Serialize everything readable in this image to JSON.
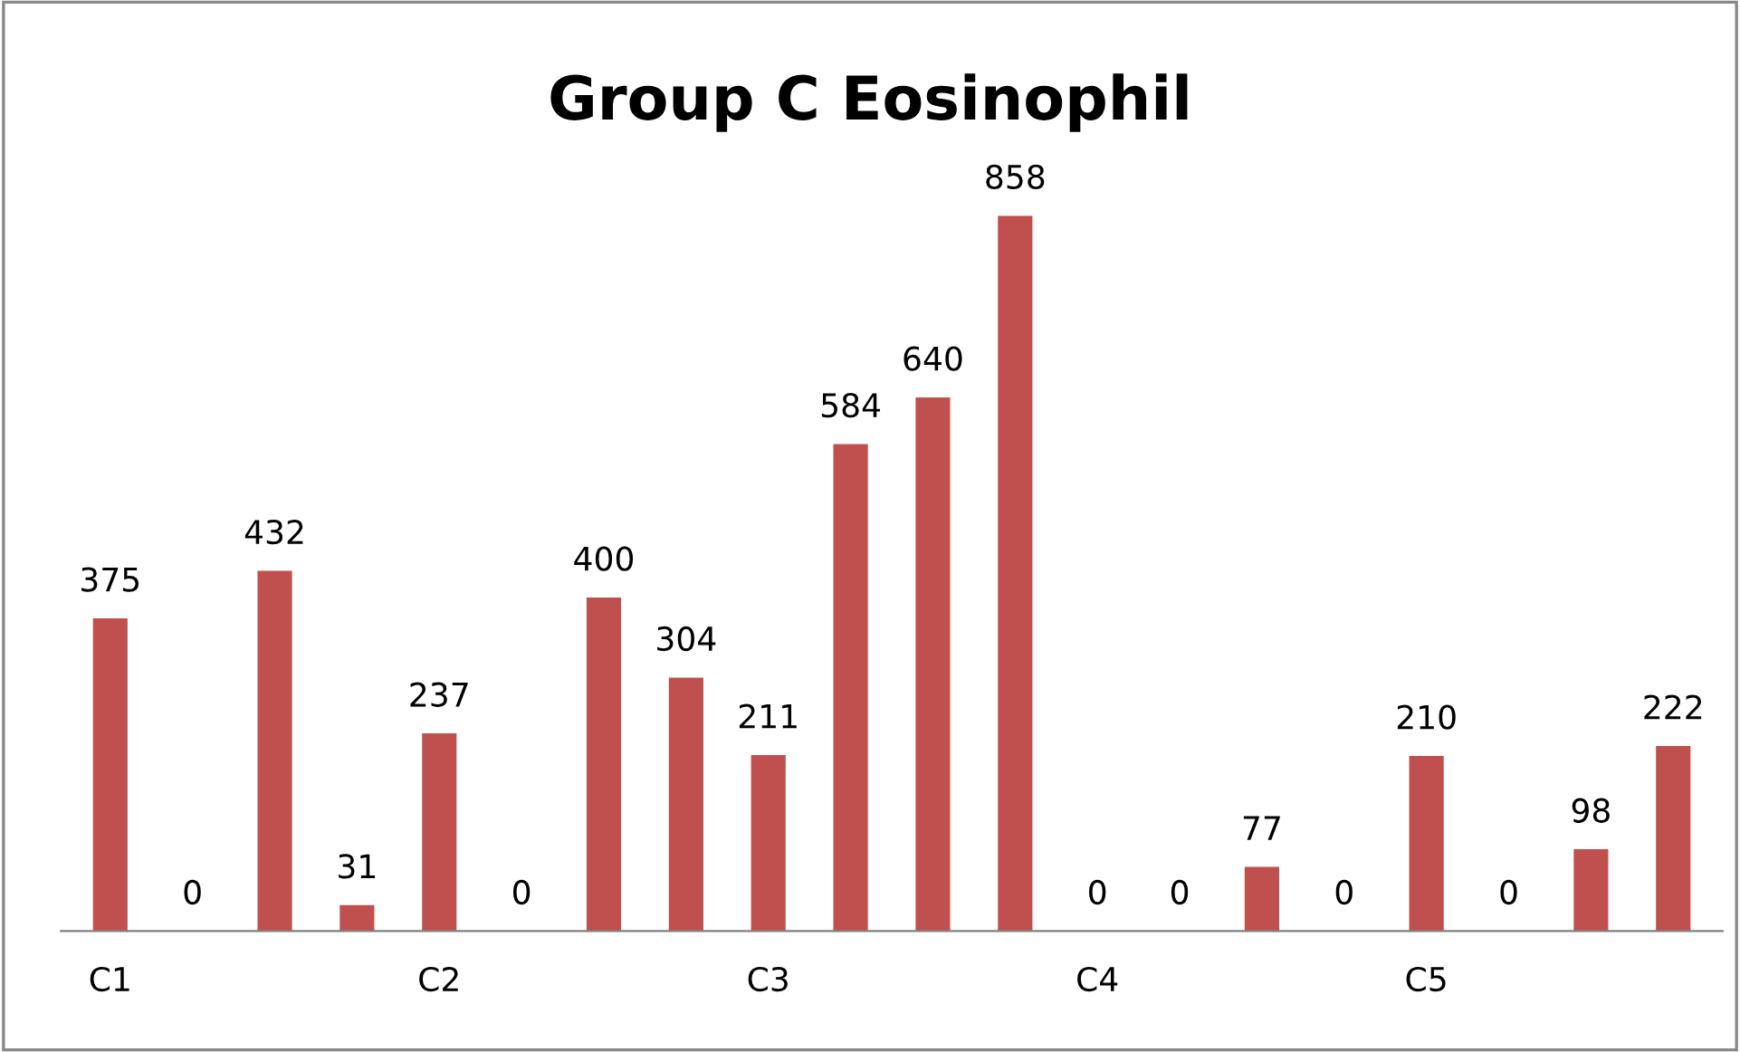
{
  "chart_data": {
    "type": "bar",
    "title": "Group C Eosinophil",
    "categories": [
      "C1",
      null,
      null,
      null,
      "C2",
      null,
      null,
      null,
      "C3",
      null,
      null,
      null,
      "C4",
      null,
      null,
      null,
      "C5",
      null,
      null,
      null
    ],
    "values": [
      375,
      0,
      432,
      31,
      237,
      0,
      400,
      304,
      211,
      584,
      640,
      858,
      0,
      0,
      77,
      0,
      210,
      0,
      98,
      222
    ],
    "color": "#c0504d",
    "data_labels": true,
    "grid": false,
    "legend": false
  }
}
